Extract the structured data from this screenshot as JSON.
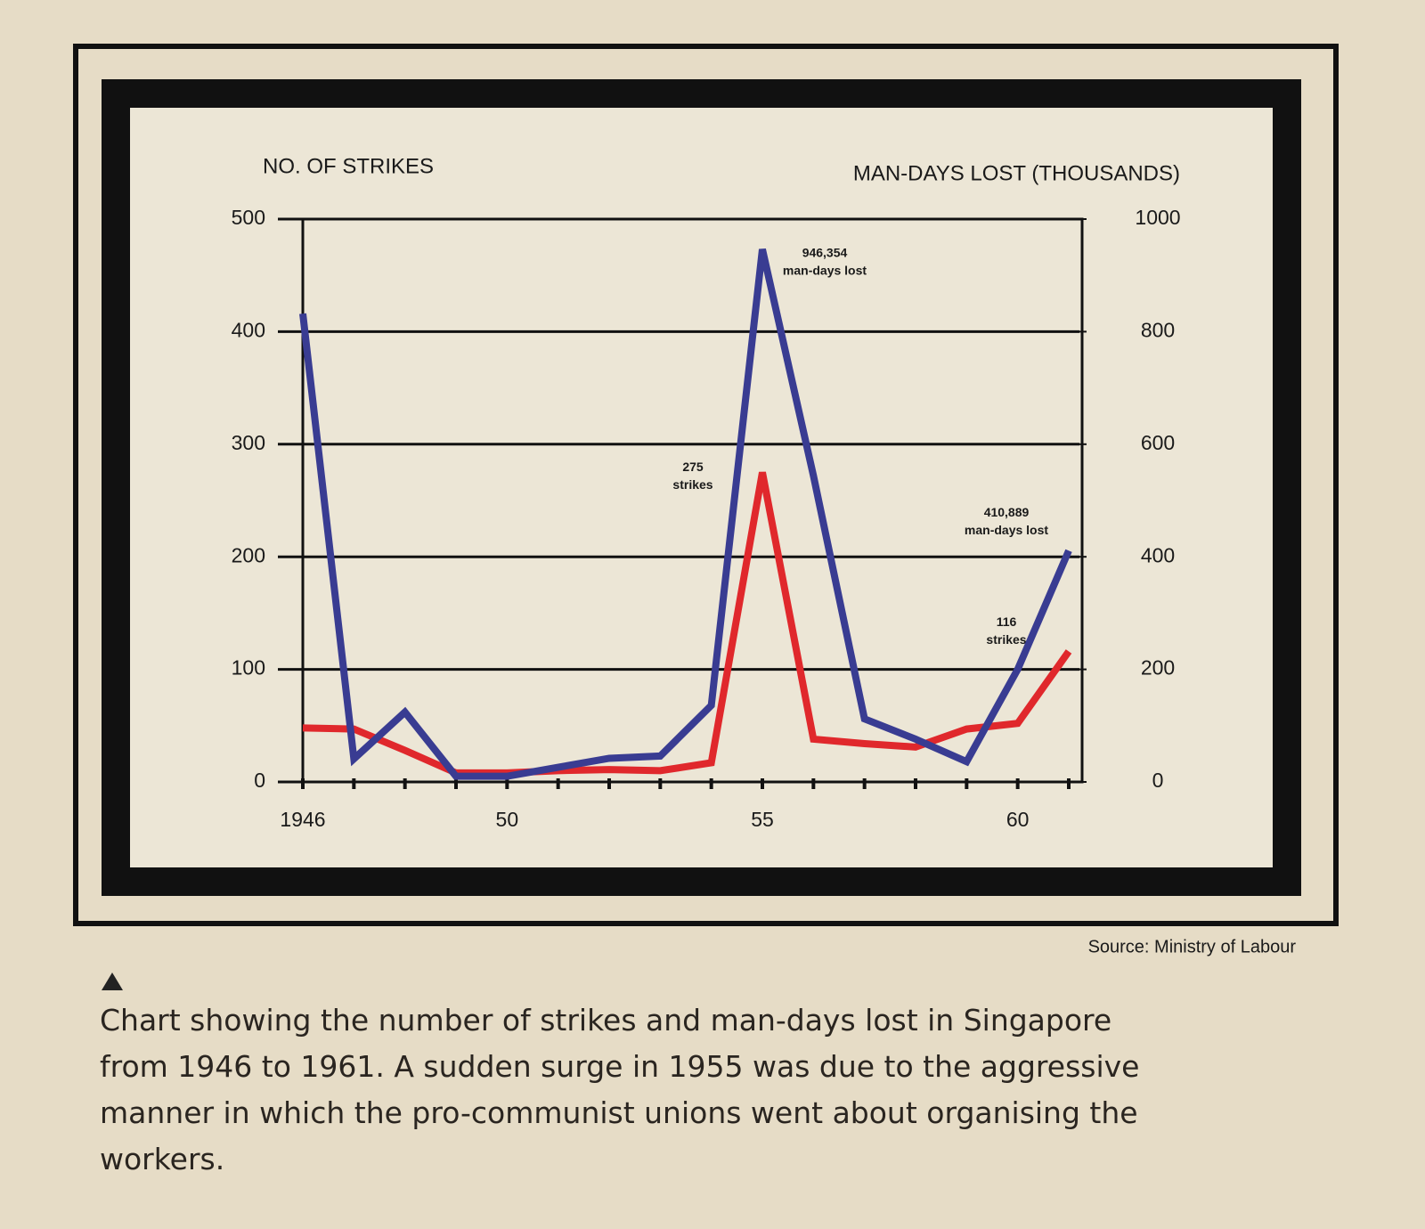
{
  "chart_data": {
    "type": "line",
    "y_label": "NO. OF STRIKES",
    "y2_label": "MAN-DAYS LOST (THOUSANDS)",
    "x": [
      1946,
      1947,
      1948,
      1949,
      1950,
      1951,
      1952,
      1953,
      1954,
      1955,
      1956,
      1957,
      1958,
      1959,
      1960,
      1961
    ],
    "xlim": [
      1946,
      1961
    ],
    "xticks": [
      1946,
      {
        "value": 1950,
        "label": "50"
      },
      {
        "value": 1955,
        "label": "55"
      },
      {
        "value": 1960,
        "label": "60"
      }
    ],
    "ylim": [
      0,
      500
    ],
    "yticks": [
      0,
      100,
      200,
      300,
      400,
      500
    ],
    "y2lim": [
      0,
      1000
    ],
    "y2ticks": [
      0,
      200,
      400,
      600,
      800,
      1000
    ],
    "grid": true,
    "series": [
      {
        "color": "#e0282c",
        "axis": "y",
        "values": [
          48,
          47,
          28,
          8,
          8,
          10,
          11,
          10,
          17,
          275,
          38,
          34,
          31,
          47,
          52,
          116
        ],
        "value_labels": [
          null,
          null,
          null,
          null,
          null,
          null,
          null,
          null,
          null,
          [
            "275",
            "strikes"
          ],
          null,
          null,
          null,
          null,
          null,
          [
            "116",
            "strikes"
          ]
        ]
      },
      {
        "color": "#393c92",
        "axis": "y2",
        "values": [
          832,
          41,
          124,
          10,
          10,
          26,
          42,
          46,
          136,
          946.354,
          544,
          112,
          76,
          36,
          200,
          410.889
        ],
        "value_labels": [
          null,
          null,
          null,
          null,
          null,
          null,
          null,
          null,
          null,
          [
            "946,354",
            "man-days lost"
          ],
          null,
          null,
          null,
          null,
          null,
          [
            "410,889",
            "man-days lost"
          ]
        ]
      }
    ],
    "source": "Source: Ministry of Labour",
    "caption": "Chart showing the number of strikes and man-days lost in Singapore from 1946 to 1961. A sudden surge in 1955 was due to the aggressive manner in which the pro-communist unions went about organising the workers."
  }
}
